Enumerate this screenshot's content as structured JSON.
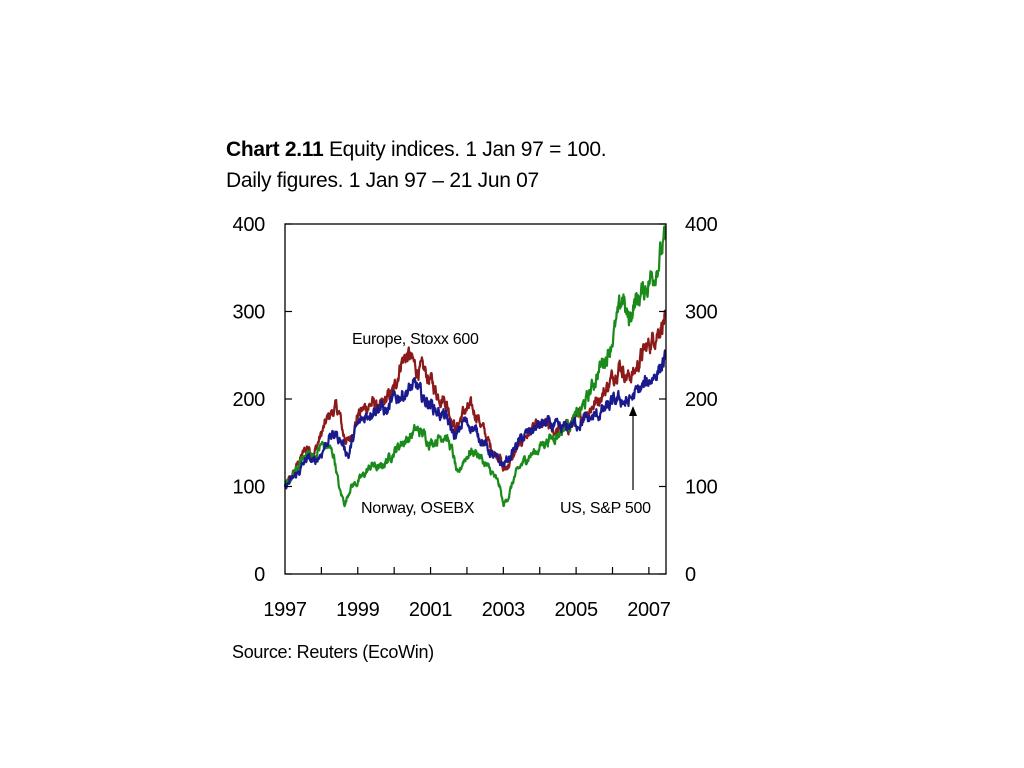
{
  "chart_data": {
    "type": "line",
    "title_bold": "Chart 2.11",
    "title_rest": "Equity indices. 1 Jan 97 = 100.",
    "subtitle": "Daily figures. 1 Jan 97 – 21 Jun 07",
    "source": "Source: Reuters (EcoWin)",
    "xlabel": "",
    "ylabel": "",
    "xlim": [
      1997.0,
      2007.47
    ],
    "ylim": [
      0,
      400
    ],
    "x_ticks": [
      "1997",
      "1999",
      "2001",
      "2003",
      "2005",
      "2007"
    ],
    "y_ticks": [
      "0",
      "100",
      "200",
      "300",
      "400"
    ],
    "y_axis_right": true,
    "grid": false,
    "colors": {
      "europe": "#8b1a1a",
      "norway": "#1a8a1a",
      "us": "#1a1a8c"
    },
    "annotations": {
      "europe": "Europe, Stoxx 600",
      "norway": "Norway, OSEBX",
      "us": "US, S&P 500"
    },
    "series": [
      {
        "name": "Europe, Stoxx 600",
        "key": "europe",
        "x": [
          1997.0,
          1997.2,
          1997.4,
          1997.6,
          1997.8,
          1998.0,
          1998.2,
          1998.4,
          1998.5,
          1998.6,
          1998.75,
          1998.9,
          1999.0,
          1999.2,
          1999.4,
          1999.6,
          1999.8,
          2000.0,
          2000.2,
          2000.4,
          2000.6,
          2000.8,
          2001.0,
          2001.2,
          2001.4,
          2001.7,
          2001.9,
          2002.1,
          2002.3,
          2002.5,
          2002.7,
          2002.9,
          2003.0,
          2003.2,
          2003.4,
          2003.6,
          2003.8,
          2004.0,
          2004.2,
          2004.4,
          2004.6,
          2004.8,
          2005.0,
          2005.2,
          2005.4,
          2005.6,
          2005.8,
          2006.0,
          2006.2,
          2006.4,
          2006.6,
          2006.8,
          2007.0,
          2007.2,
          2007.45
        ],
        "values": [
          100,
          112,
          130,
          145,
          138,
          160,
          180,
          190,
          182,
          160,
          150,
          168,
          182,
          190,
          195,
          188,
          200,
          210,
          245,
          250,
          235,
          232,
          222,
          205,
          200,
          165,
          185,
          190,
          180,
          160,
          140,
          135,
          118,
          128,
          145,
          158,
          165,
          168,
          170,
          163,
          165,
          168,
          178,
          182,
          190,
          200,
          210,
          225,
          240,
          225,
          230,
          250,
          262,
          275,
          293
        ]
      },
      {
        "name": "Norway, OSEBX",
        "key": "norway",
        "x": [
          1997.0,
          1997.2,
          1997.4,
          1997.6,
          1997.8,
          1998.0,
          1998.2,
          1998.35,
          1998.5,
          1998.65,
          1998.8,
          1999.0,
          1999.2,
          1999.4,
          1999.6,
          1999.8,
          2000.0,
          2000.2,
          2000.4,
          2000.6,
          2000.8,
          2001.0,
          2001.2,
          2001.4,
          2001.6,
          2001.75,
          2001.9,
          2002.1,
          2002.3,
          2002.5,
          2002.7,
          2002.9,
          2003.0,
          2003.15,
          2003.3,
          2003.5,
          2003.7,
          2003.9,
          2004.1,
          2004.3,
          2004.5,
          2004.7,
          2004.9,
          2005.1,
          2005.3,
          2005.5,
          2005.7,
          2005.9,
          2006.1,
          2006.3,
          2006.35,
          2006.45,
          2006.6,
          2006.8,
          2007.0,
          2007.2,
          2007.45
        ],
        "values": [
          100,
          110,
          125,
          140,
          132,
          148,
          145,
          135,
          95,
          80,
          100,
          105,
          115,
          125,
          120,
          130,
          140,
          150,
          155,
          165,
          160,
          150,
          155,
          160,
          140,
          110,
          130,
          140,
          138,
          125,
          115,
          100,
          78,
          90,
          110,
          125,
          135,
          140,
          150,
          155,
          160,
          168,
          175,
          185,
          200,
          220,
          240,
          255,
          285,
          320,
          300,
          290,
          310,
          320,
          335,
          350,
          382
        ]
      },
      {
        "name": "US, S&P 500",
        "key": "us",
        "x": [
          1997.0,
          1997.2,
          1997.4,
          1997.6,
          1997.8,
          1998.0,
          1998.2,
          1998.4,
          1998.6,
          1998.75,
          1998.9,
          1999.0,
          1999.2,
          1999.4,
          1999.6,
          1999.8,
          2000.0,
          2000.2,
          2000.4,
          2000.6,
          2000.8,
          2001.0,
          2001.2,
          2001.4,
          2001.7,
          2001.9,
          2002.1,
          2002.3,
          2002.5,
          2002.7,
          2002.9,
          2003.0,
          2003.2,
          2003.4,
          2003.6,
          2003.8,
          2004.0,
          2004.2,
          2004.4,
          2004.6,
          2004.8,
          2005.0,
          2005.2,
          2005.4,
          2005.6,
          2005.8,
          2006.0,
          2006.2,
          2006.4,
          2006.6,
          2006.8,
          2007.0,
          2007.2,
          2007.45
        ],
        "values": [
          100,
          108,
          118,
          132,
          128,
          138,
          155,
          160,
          148,
          135,
          160,
          170,
          180,
          188,
          192,
          185,
          200,
          205,
          210,
          215,
          200,
          195,
          185,
          180,
          155,
          175,
          170,
          160,
          148,
          135,
          128,
          125,
          135,
          150,
          158,
          165,
          170,
          172,
          168,
          165,
          170,
          172,
          175,
          178,
          182,
          188,
          195,
          200,
          195,
          205,
          212,
          220,
          230,
          245
        ]
      }
    ]
  }
}
